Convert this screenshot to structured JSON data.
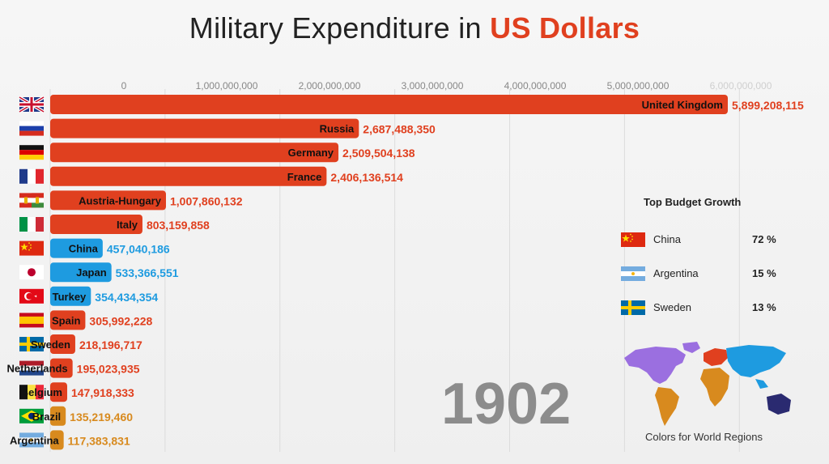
{
  "title_prefix": "Military Expenditure in ",
  "title_accent": "US Dollars",
  "year": "1902",
  "colors": {
    "europe": "#e0401f",
    "asia": "#1e9be0",
    "south_america": "#d88a1e"
  },
  "chart_data": {
    "type": "bar",
    "orientation": "horizontal",
    "title": "Military Expenditure in US Dollars",
    "xlim": [
      0,
      6000000000
    ],
    "x_ticks": [
      "0",
      "1,000,000,000",
      "2,000,000,000",
      "3,000,000,000",
      "4,000,000,000",
      "5,000,000,000",
      "6,000,000,000"
    ],
    "grid": true,
    "categories": [
      "United Kingdom",
      "Russia",
      "Germany",
      "France",
      "Austria-Hungary",
      "Italy",
      "China",
      "Japan",
      "Turkey",
      "Spain",
      "Sweden",
      "Netherlands",
      "Belgium",
      "Brazil",
      "Argentina"
    ],
    "values": [
      5899208115,
      2687488350,
      2509504138,
      2406136514,
      1007860132,
      803159858,
      457040186,
      533366551,
      354434354,
      305992228,
      218196717,
      195023935,
      147918333,
      135219460,
      117383831
    ],
    "value_labels": [
      "5,899,208,115",
      "2,687,488,350",
      "2,509,504,138",
      "2,406,136,514",
      "1,007,860,132",
      "803,159,858",
      "457,040,186",
      "533,366,551",
      "354,434,354",
      "305,992,228",
      "218,196,717",
      "195,023,935",
      "147,918,333",
      "135,219,460",
      "117,383,831"
    ],
    "regions": [
      "europe",
      "europe",
      "europe",
      "europe",
      "europe",
      "europe",
      "asia",
      "asia",
      "asia",
      "europe",
      "europe",
      "europe",
      "europe",
      "south_america",
      "south_america"
    ],
    "flags": [
      "uk-flag",
      "russia-flag",
      "germany-flag",
      "france-flag",
      "austria-hungary-flag",
      "italy-flag",
      "china-flag",
      "japan-flag",
      "turkey-flag",
      "spain-flag",
      "sweden-flag",
      "netherlands-flag",
      "belgium-flag",
      "brazil-flag",
      "argentina-flag"
    ]
  },
  "growth": {
    "title": "Top Budget Growth",
    "items": [
      {
        "name": "China",
        "pct": "72 %",
        "flag": "china-flag"
      },
      {
        "name": "Argentina",
        "pct": "15 %",
        "flag": "argentina-flag"
      },
      {
        "name": "Sweden",
        "pct": "13 %",
        "flag": "sweden-flag"
      }
    ]
  },
  "map_caption": "Colors for World Regions"
}
